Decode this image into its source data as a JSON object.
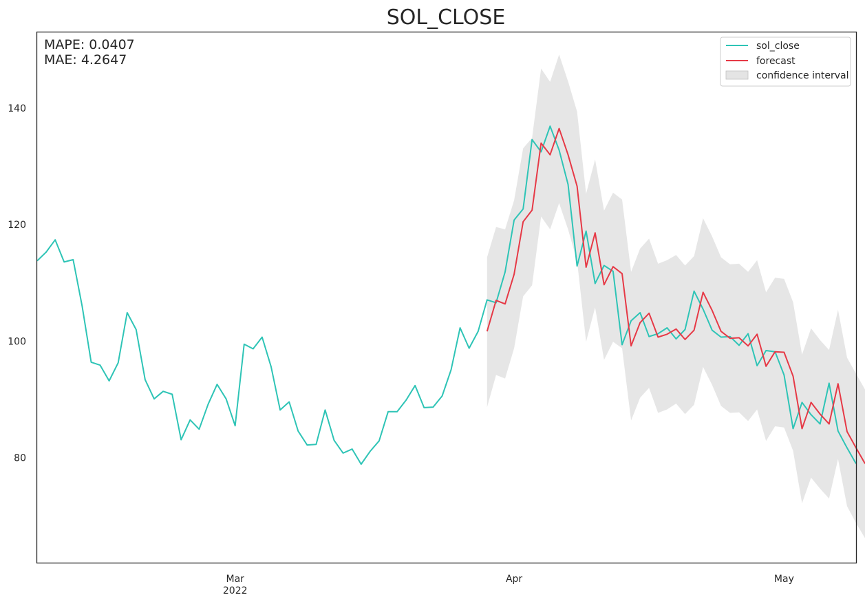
{
  "chart_data": {
    "type": "line",
    "title": "SOL_CLOSE",
    "xlabel": "",
    "ylabel": "",
    "x_start": "2022-02-07",
    "x_end": "2022-05-09",
    "x_ticks": [
      {
        "date": "2022-03-01",
        "label": "Mar",
        "sublabel": "2022"
      },
      {
        "date": "2022-04-01",
        "label": "Apr",
        "sublabel": ""
      },
      {
        "date": "2022-05-01",
        "label": "May",
        "sublabel": ""
      }
    ],
    "ylim": [
      62,
      153
    ],
    "y_ticks": [
      80,
      100,
      120,
      140
    ],
    "grid": false,
    "legend_position": "top-right",
    "colors": {
      "sol_close": "#2ec4b6",
      "forecast": "#e63946",
      "confidence": "#d9d9d9"
    },
    "annotations": [
      "MAPE: 0.0407",
      "MAE: 4.2647"
    ],
    "legend": {
      "sol_close": "sol_close",
      "forecast": "forecast",
      "confidence": "confidence interval"
    },
    "series": [
      {
        "name": "sol_close",
        "start": "2022-02-07",
        "values": [
          113.8,
          115.3,
          117.4,
          113.6,
          114.0,
          106.0,
          96.4,
          95.9,
          93.2,
          96.3,
          104.9,
          102.0,
          93.4,
          90.1,
          91.4,
          90.9,
          83.1,
          86.5,
          84.9,
          89.2,
          92.6,
          90.1,
          85.5,
          99.5,
          98.7,
          100.7,
          95.6,
          88.2,
          89.6,
          84.6,
          82.2,
          82.3,
          88.2,
          83.0,
          80.8,
          81.5,
          78.9,
          81.1,
          82.9,
          87.9,
          87.9,
          89.9,
          92.4,
          88.6,
          88.7,
          90.6,
          95.1,
          102.3,
          98.8,
          101.7,
          107.1,
          106.6,
          111.9,
          120.8,
          122.7,
          134.6,
          132.5,
          136.9,
          132.8,
          126.9,
          112.9,
          118.9,
          109.9,
          113.0,
          112.0,
          99.4,
          103.5,
          104.9,
          100.8,
          101.3,
          102.3,
          100.4,
          102.0,
          108.6,
          105.5,
          101.9,
          100.7,
          100.8,
          99.3,
          101.3,
          95.8,
          98.4,
          98.2,
          94.2,
          85.0,
          89.5,
          87.4,
          85.8,
          92.8,
          84.6,
          81.7,
          79.0
        ]
      },
      {
        "name": "forecast",
        "start": "2022-03-29",
        "values": [
          101.7,
          107.0,
          106.4,
          111.5,
          120.5,
          122.5,
          134.0,
          132.0,
          136.5,
          132.0,
          126.6,
          112.7,
          118.6,
          109.7,
          112.8,
          111.6,
          99.2,
          103.2,
          104.8,
          100.7,
          101.2,
          102.1,
          100.3,
          101.9,
          108.4,
          105.3,
          101.7,
          100.5,
          100.6,
          99.2,
          101.2,
          95.7,
          98.2,
          98.1,
          94.0,
          85.0,
          89.5,
          87.5,
          85.8,
          92.7,
          84.5,
          81.7,
          79.0
        ]
      },
      {
        "name": "confidence interval",
        "start": "2022-03-29",
        "lower": [
          88.7,
          94.2,
          93.6,
          98.8,
          107.7,
          109.6,
          121.4,
          119.2,
          123.7,
          119.2,
          113.8,
          99.9,
          105.8,
          96.8,
          99.9,
          98.8,
          86.4,
          90.3,
          92.0,
          87.7,
          88.3,
          89.3,
          87.5,
          89.1,
          95.6,
          92.5,
          88.9,
          87.7,
          87.8,
          86.3,
          88.3,
          82.9,
          85.4,
          85.2,
          81.2,
          72.2,
          76.6,
          74.7,
          73.0,
          79.8,
          71.7,
          68.8,
          66.2
        ],
        "upper": [
          114.4,
          119.6,
          119.2,
          124.2,
          133.1,
          134.9,
          146.8,
          144.5,
          149.2,
          144.6,
          139.4,
          125.3,
          131.2,
          122.4,
          125.5,
          124.3,
          111.9,
          115.9,
          117.6,
          113.3,
          113.9,
          114.8,
          113.0,
          114.6,
          121.1,
          118.0,
          114.4,
          113.2,
          113.3,
          111.9,
          113.9,
          108.4,
          110.9,
          110.7,
          106.7,
          97.7,
          102.2,
          100.2,
          98.5,
          105.4,
          97.2,
          94.4,
          91.7
        ]
      }
    ]
  }
}
